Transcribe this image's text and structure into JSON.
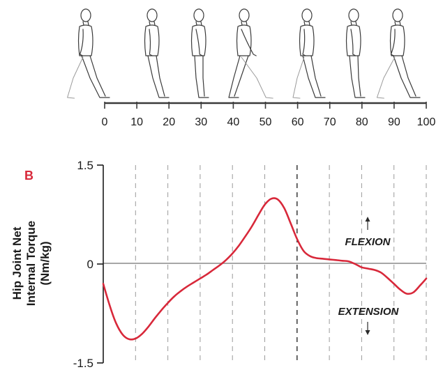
{
  "panel_label": "B",
  "gait_figure": {
    "tick_labels": [
      "0",
      "10",
      "20",
      "30",
      "40",
      "50",
      "60",
      "70",
      "80",
      "90",
      "100"
    ]
  },
  "chart_data": {
    "type": "line",
    "ylabel_lines": [
      "Hip Joint Net",
      "Internal Torque",
      "(Nm/kg)"
    ],
    "xlabel": "",
    "xlim": [
      0,
      100
    ],
    "ylim": [
      -1.5,
      1.5
    ],
    "yticks": [
      "1.5",
      "0",
      "-1.5"
    ],
    "ytick_values": [
      1.5,
      0,
      -1.5
    ],
    "x_gridlines": [
      10,
      20,
      30,
      40,
      50,
      60,
      70,
      80,
      90,
      100
    ],
    "emphasized_gridline": 60,
    "grid": true,
    "annotations": {
      "flexion": "FLEXION",
      "extension": "EXTENSION"
    },
    "series": [
      {
        "color": "#d8283a",
        "x": [
          0,
          2,
          4,
          6,
          8,
          10,
          12,
          14,
          16,
          18,
          20,
          22,
          24,
          26,
          28,
          30,
          32,
          34,
          36,
          38,
          40,
          42,
          44,
          46,
          48,
          50,
          52,
          54,
          56,
          58,
          60,
          62,
          64,
          66,
          68,
          70,
          72,
          74,
          76,
          78,
          80,
          82,
          84,
          86,
          88,
          90,
          92,
          94,
          96,
          98,
          100
        ],
        "y": [
          -0.3,
          -0.63,
          -0.9,
          -1.07,
          -1.14,
          -1.13,
          -1.06,
          -0.95,
          -0.82,
          -0.7,
          -0.59,
          -0.49,
          -0.41,
          -0.34,
          -0.28,
          -0.22,
          -0.16,
          -0.09,
          -0.02,
          0.06,
          0.16,
          0.28,
          0.42,
          0.57,
          0.74,
          0.9,
          0.99,
          0.98,
          0.85,
          0.62,
          0.38,
          0.2,
          0.12,
          0.09,
          0.08,
          0.07,
          0.06,
          0.05,
          0.04,
          0.0,
          -0.05,
          -0.07,
          -0.09,
          -0.13,
          -0.21,
          -0.3,
          -0.39,
          -0.45,
          -0.43,
          -0.33,
          -0.22
        ]
      }
    ]
  }
}
